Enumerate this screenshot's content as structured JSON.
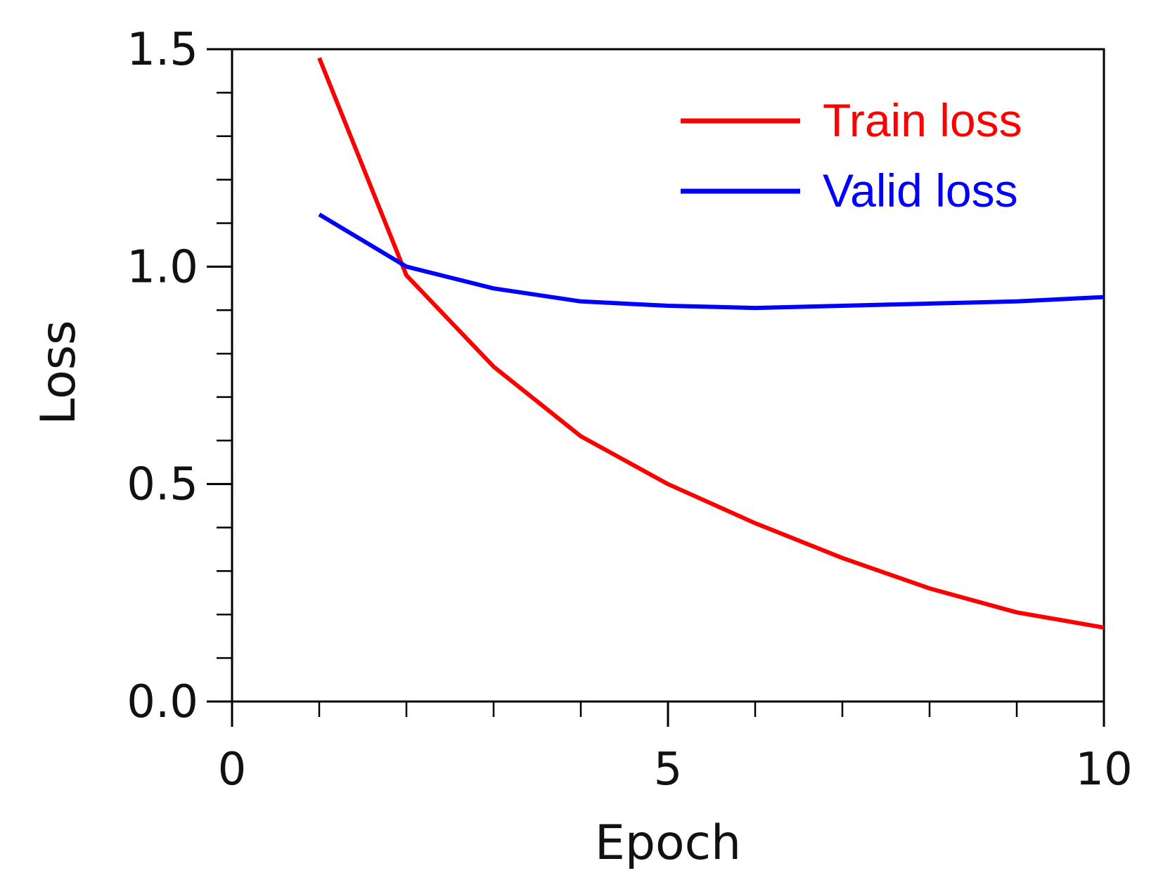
{
  "chart_data": {
    "type": "line",
    "xlabel": "Epoch",
    "ylabel": "Loss",
    "xlim": [
      0,
      10
    ],
    "ylim": [
      0,
      1.5
    ],
    "x_major_ticks": [
      0,
      5,
      10
    ],
    "x_major_tick_labels": [
      "0",
      "5",
      "10"
    ],
    "x_minor_ticks": [
      1,
      2,
      3,
      4,
      6,
      7,
      8,
      9
    ],
    "y_major_ticks": [
      0,
      0.5,
      1.0,
      1.5
    ],
    "y_major_tick_labels": [
      "0.0",
      "0.5",
      "1.0",
      "1.5"
    ],
    "y_minor_ticks": [
      0.1,
      0.2,
      0.3,
      0.4,
      0.6,
      0.7,
      0.8,
      0.9,
      1.1,
      1.2,
      1.3,
      1.4
    ],
    "grid": false,
    "legend_position": "top-right",
    "x": [
      1,
      2,
      3,
      4,
      5,
      6,
      7,
      8,
      9,
      10
    ],
    "series": [
      {
        "name": "Train loss",
        "color": "#ff0000",
        "values": [
          1.48,
          0.98,
          0.77,
          0.61,
          0.5,
          0.41,
          0.33,
          0.26,
          0.205,
          0.17
        ]
      },
      {
        "name": "Valid loss",
        "color": "#0000ff",
        "values": [
          1.12,
          1.0,
          0.95,
          0.92,
          0.91,
          0.905,
          0.91,
          0.915,
          0.92,
          0.93
        ]
      }
    ]
  }
}
